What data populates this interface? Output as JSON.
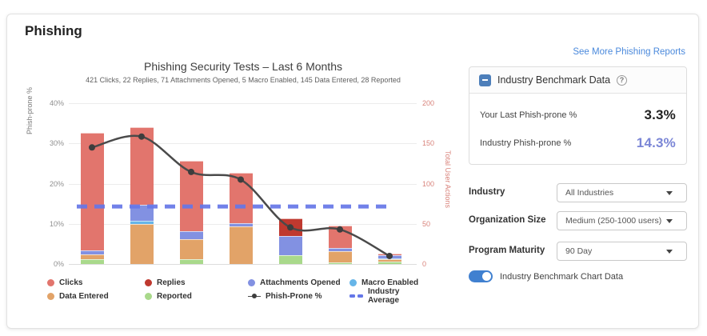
{
  "page": {
    "title": "Phishing"
  },
  "chart": {
    "title": "Phishing Security Tests – Last 6 Months",
    "subtitle": "421 Clicks, 22 Replies, 71 Attachments Opened, 5 Macro Enabled, 145 Data Entered, 28 Reported",
    "y_left_label": "Phish-prone %",
    "y_right_label": "Total User Actions"
  },
  "chart_data": {
    "type": "bar",
    "subtype": "stacked-bar-with-line-overlay",
    "categories": [
      "1",
      "2",
      "3",
      "4",
      "5",
      "6",
      "7"
    ],
    "x_axis_labels_visible": false,
    "bars_axis": "right",
    "stack_order_bottom_to_top": [
      "Reported",
      "Data Entered",
      "Macro Enabled",
      "Attachments Opened",
      "Replies",
      "Clicks"
    ],
    "series": [
      {
        "name": "Clicks",
        "type": "bar",
        "color": "#e2756d",
        "values": [
          146,
          96,
          87,
          62,
          0,
          28,
          2
        ]
      },
      {
        "name": "Replies",
        "type": "bar",
        "color": "#bf392f",
        "values": [
          0,
          0,
          0,
          0,
          22,
          0,
          0
        ]
      },
      {
        "name": "Attachments Opened",
        "type": "bar",
        "color": "#8291e2",
        "values": [
          5,
          20,
          10,
          4,
          24,
          4,
          4
        ]
      },
      {
        "name": "Macro Enabled",
        "type": "bar",
        "color": "#66b5e8",
        "values": [
          0,
          4,
          0,
          0,
          0,
          0,
          1
        ]
      },
      {
        "name": "Data Entered",
        "type": "bar",
        "color": "#e2a368",
        "values": [
          6,
          50,
          25,
          47,
          0,
          14,
          3
        ]
      },
      {
        "name": "Reported",
        "type": "bar",
        "color": "#a9d98b",
        "values": [
          6,
          0,
          6,
          0,
          11,
          2,
          3
        ]
      },
      {
        "name": "Phish-Prone %",
        "type": "line",
        "axis": "left",
        "color": "#4a4a4a",
        "values": [
          29,
          31.7,
          22.9,
          21,
          9.1,
          8.6,
          2
        ]
      },
      {
        "name": "Industry Average",
        "type": "dashed-horizontal-line",
        "axis": "left",
        "color": "#6577e8",
        "value": 14.3
      }
    ],
    "left_axis": {
      "label": "Phish-prone %",
      "min": 0,
      "max": 40,
      "ticks": [
        "40%",
        "30%",
        "20%",
        "10%",
        "0%"
      ],
      "unit": "%"
    },
    "right_axis": {
      "label": "Total User Actions",
      "min": 0,
      "max": 200,
      "ticks": [
        "200",
        "150",
        "100",
        "50",
        "0"
      ]
    },
    "grid": true,
    "legend_position": "bottom"
  },
  "legend": {
    "items": [
      {
        "label": "Clicks",
        "marker": "circle",
        "color": "#e2756d"
      },
      {
        "label": "Data Entered",
        "marker": "circle",
        "color": "#e2a368"
      },
      {
        "label": "Replies",
        "marker": "circle",
        "color": "#bf392f"
      },
      {
        "label": "Reported",
        "marker": "circle",
        "color": "#a9d98b"
      },
      {
        "label": "Attachments Opened",
        "marker": "circle",
        "color": "#8291e2"
      },
      {
        "label": "Phish-Prone %",
        "marker": "line-dot",
        "color": "#4a4a4a"
      },
      {
        "label": "Macro Enabled",
        "marker": "circle",
        "color": "#66b5e8"
      },
      {
        "label": "Industry Average",
        "marker": "dash",
        "color": "#6577e8"
      }
    ]
  },
  "panel": {
    "link": "See More Phishing Reports",
    "benchmark": {
      "title": "Industry Benchmark Data",
      "help_icon": "?",
      "rows": [
        {
          "label": "Your Last Phish-prone %",
          "value": "3.3%"
        },
        {
          "label": "Industry Phish-prone %",
          "value": "14.3%"
        }
      ]
    },
    "filters": [
      {
        "label": "Industry",
        "value": "All Industries"
      },
      {
        "label": "Organization Size",
        "value": "Medium (250-1000 users)"
      },
      {
        "label": "Program Maturity",
        "value": "90 Day"
      }
    ],
    "toggle_label": "Industry Benchmark Chart Data",
    "toggle_on": true
  },
  "colors": {
    "link_blue": "#4a89dc",
    "benchmark_industry_value": "#7b86d6",
    "collapse_icon_blue": "#4d7fba",
    "toggle_blue": "#4080d0",
    "right_axis_pink": "#d9837b",
    "line_gray": "#4a4a4a",
    "industry_average_blue": "#6577e8"
  }
}
